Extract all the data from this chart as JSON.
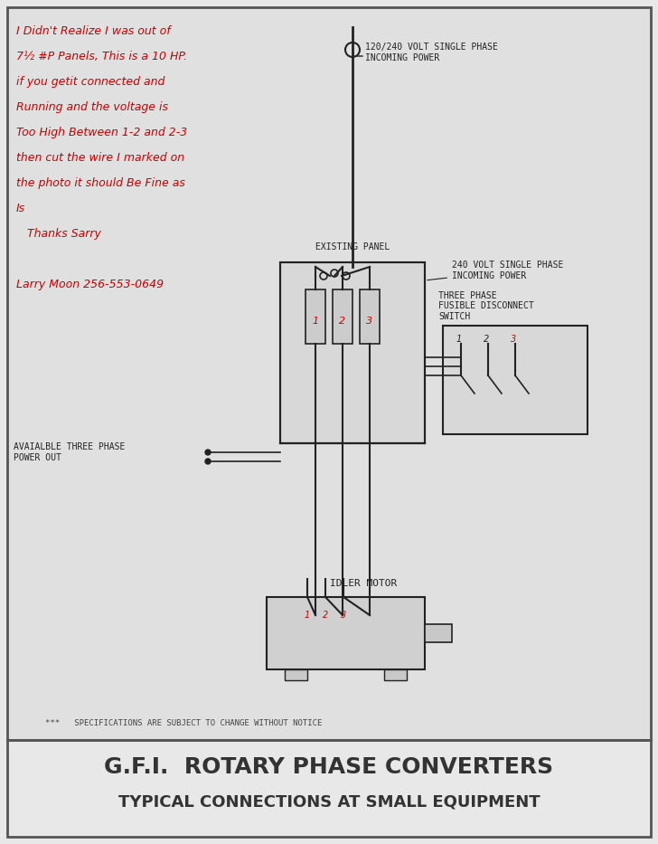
{
  "bg_color": "#e8e8e8",
  "diagram_bg": "#d8d8d8",
  "border_color": "#555555",
  "line_color": "#222222",
  "red_color": "#cc0000",
  "handwriting_color": "#cc0000",
  "title1": "G.F.I.  ROTARY PHASE CONVERTERS",
  "title2": "TYPICAL CONNECTIONS AT SMALL EQUIPMENT",
  "footer": "***   SPECIFICATIONS ARE SUBJECT TO CHANGE WITHOUT NOTICE",
  "label_incoming_top": "120/240 VOLT SINGLE PHASE\nINCOMING POWER",
  "label_existing_panel": "EXISTING PANEL",
  "label_240v": "240 VOLT SINGLE PHASE\nINCOMING POWER",
  "label_three_phase_switch": "THREE PHASE\nFUSIBLE DISCONNECT\nSWITCH",
  "label_three_phase_out": "AVAIALBLE THREE PHASE\nPOWER OUT",
  "label_idler_motor": "IDLER MOTOR",
  "handwritten_text": "I Didn't Realize I was out of\n7½ #P Panels, This is a 10 HP.\nif you getit connected and\nRunning and the voltage is\nToo High Between 1-2 and 2-3\nthen cut the wire I marked on\nthe photo it should Be Fine as\nIs\n   Thanks Sarry\n\nLarry Moon 256-553-0649"
}
